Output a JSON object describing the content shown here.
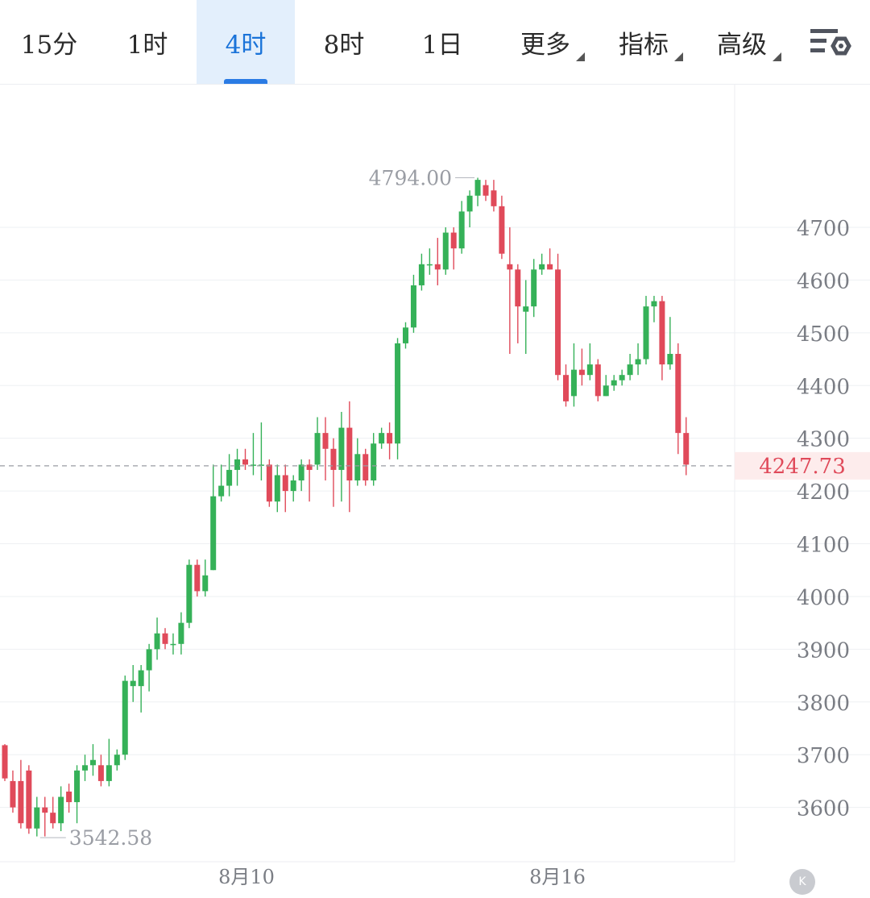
{
  "toolbar": {
    "tabs": [
      {
        "label": "15分",
        "active": false
      },
      {
        "label": "1时",
        "active": false
      },
      {
        "label": "4时",
        "active": true
      },
      {
        "label": "8时",
        "active": false
      },
      {
        "label": "1日",
        "active": false
      },
      {
        "label": "更多",
        "active": false,
        "dropdown": true
      },
      {
        "label": "指标",
        "active": false,
        "dropdown": true
      },
      {
        "label": "高级",
        "active": false,
        "dropdown": true
      }
    ],
    "settings_icon": "chart-settings-icon",
    "accent_color": "#1a73d9"
  },
  "chart_data": {
    "type": "candlestick",
    "y_ticks": [
      3600,
      3700,
      3800,
      3900,
      4000,
      4100,
      4200,
      4300,
      4400,
      4500,
      4600,
      4700
    ],
    "x_labels": [
      "8月10",
      "8月16"
    ],
    "last_price": "4247.73",
    "high_label": "4794.00",
    "low_label": "3542.58",
    "up_color": "#35b158",
    "down_color": "#e04a5a",
    "candles": [
      [
        3718,
        3655,
        3720,
        3650
      ],
      [
        3650,
        3600,
        3670,
        3590
      ],
      [
        3650,
        3570,
        3690,
        3560
      ],
      [
        3670,
        3560,
        3680,
        3550
      ],
      [
        3560,
        3600,
        3620,
        3545
      ],
      [
        3600,
        3590,
        3620,
        3545
      ],
      [
        3590,
        3570,
        3620,
        3560
      ],
      [
        3570,
        3620,
        3640,
        3555
      ],
      [
        3630,
        3610,
        3645,
        3590
      ],
      [
        3610,
        3670,
        3680,
        3570
      ],
      [
        3670,
        3680,
        3700,
        3650
      ],
      [
        3680,
        3690,
        3720,
        3660
      ],
      [
        3680,
        3650,
        3700,
        3640
      ],
      [
        3650,
        3680,
        3730,
        3640
      ],
      [
        3680,
        3700,
        3710,
        3670
      ],
      [
        3700,
        3840,
        3850,
        3690
      ],
      [
        3830,
        3840,
        3870,
        3800
      ],
      [
        3830,
        3860,
        3870,
        3780
      ],
      [
        3860,
        3900,
        3910,
        3820
      ],
      [
        3900,
        3930,
        3960,
        3880
      ],
      [
        3930,
        3910,
        3940,
        3900
      ],
      [
        3910,
        3910,
        3930,
        3890
      ],
      [
        3910,
        3950,
        3970,
        3890
      ],
      [
        3950,
        4060,
        4070,
        3940
      ],
      [
        4060,
        4010,
        4070,
        4000
      ],
      [
        4010,
        4040,
        4070,
        4000
      ],
      [
        4050,
        4190,
        4250,
        4050
      ],
      [
        4190,
        4210,
        4250,
        4180
      ],
      [
        4210,
        4240,
        4270,
        4190
      ],
      [
        4240,
        4260,
        4280,
        4210
      ],
      [
        4260,
        4250,
        4280,
        4240
      ],
      [
        4250,
        4250,
        4310,
        4230
      ],
      [
        4250,
        4250,
        4330,
        4220
      ],
      [
        4250,
        4180,
        4260,
        4170
      ],
      [
        4180,
        4230,
        4250,
        4160
      ],
      [
        4230,
        4200,
        4250,
        4160
      ],
      [
        4200,
        4220,
        4230,
        4180
      ],
      [
        4220,
        4250,
        4260,
        4200
      ],
      [
        4250,
        4240,
        4260,
        4180
      ],
      [
        4250,
        4310,
        4340,
        4240
      ],
      [
        4310,
        4280,
        4340,
        4220
      ],
      [
        4280,
        4240,
        4300,
        4170
      ],
      [
        4240,
        4320,
        4350,
        4180
      ],
      [
        4320,
        4220,
        4370,
        4160
      ],
      [
        4220,
        4270,
        4300,
        4210
      ],
      [
        4270,
        4220,
        4280,
        4210
      ],
      [
        4220,
        4290,
        4310,
        4210
      ],
      [
        4290,
        4310,
        4320,
        4280
      ],
      [
        4310,
        4290,
        4330,
        4260
      ],
      [
        4290,
        4480,
        4490,
        4260
      ],
      [
        4480,
        4510,
        4520,
        4470
      ],
      [
        4510,
        4590,
        4610,
        4500
      ],
      [
        4590,
        4630,
        4650,
        4580
      ],
      [
        4630,
        4630,
        4660,
        4610
      ],
      [
        4630,
        4620,
        4680,
        4590
      ],
      [
        4620,
        4690,
        4700,
        4610
      ],
      [
        4690,
        4660,
        4700,
        4620
      ],
      [
        4660,
        4730,
        4750,
        4650
      ],
      [
        4730,
        4760,
        4770,
        4700
      ],
      [
        4760,
        4790,
        4794,
        4740
      ],
      [
        4780,
        4760,
        4790,
        4750
      ],
      [
        4770,
        4740,
        4790,
        4730
      ],
      [
        4740,
        4650,
        4760,
        4640
      ],
      [
        4630,
        4620,
        4700,
        4460
      ],
      [
        4620,
        4550,
        4630,
        4480
      ],
      [
        4540,
        4550,
        4600,
        4460
      ],
      [
        4550,
        4620,
        4640,
        4530
      ],
      [
        4620,
        4630,
        4650,
        4610
      ],
      [
        4630,
        4620,
        4660,
        4620
      ],
      [
        4620,
        4420,
        4650,
        4410
      ],
      [
        4420,
        4370,
        4440,
        4360
      ],
      [
        4380,
        4430,
        4480,
        4360
      ],
      [
        4430,
        4420,
        4470,
        4400
      ],
      [
        4420,
        4440,
        4480,
        4410
      ],
      [
        4440,
        4380,
        4450,
        4370
      ],
      [
        4380,
        4400,
        4420,
        4380
      ],
      [
        4400,
        4410,
        4420,
        4390
      ],
      [
        4410,
        4420,
        4430,
        4400
      ],
      [
        4420,
        4440,
        4460,
        4410
      ],
      [
        4440,
        4450,
        4480,
        4420
      ],
      [
        4450,
        4550,
        4570,
        4440
      ],
      [
        4550,
        4560,
        4570,
        4520
      ],
      [
        4560,
        4440,
        4570,
        4410
      ],
      [
        4440,
        4460,
        4530,
        4430
      ],
      [
        4460,
        4310,
        4480,
        4270
      ],
      [
        4310,
        4250,
        4340,
        4230
      ]
    ]
  }
}
